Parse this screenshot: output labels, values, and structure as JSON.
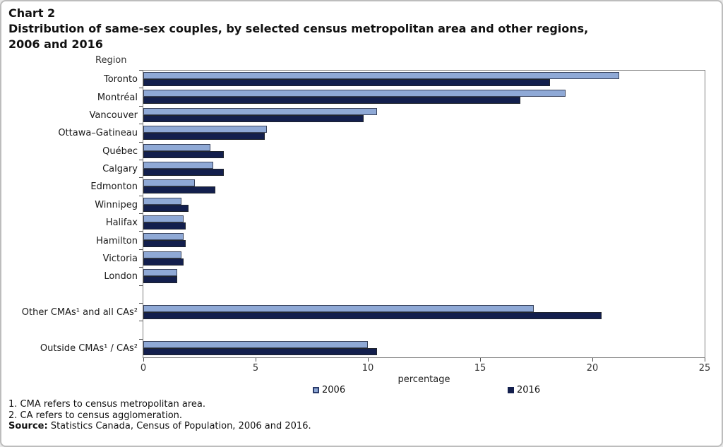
{
  "header": {
    "chart_label": "Chart 2",
    "title": "Distribution of same-sex couples, by selected census metropolitan area and other regions, 2006 and 2016"
  },
  "chart_data": {
    "type": "bar",
    "orientation": "horizontal",
    "title": "Distribution of same-sex couples, by selected census metropolitan area and other regions, 2006 and 2016",
    "ylabel": "Region",
    "xlabel": "percentage",
    "xlim": [
      0,
      25
    ],
    "xticks": [
      0,
      5,
      10,
      15,
      20,
      25
    ],
    "grid": "off",
    "legend_position": "bottom",
    "categories": [
      "Toronto",
      "Montréal",
      "Vancouver",
      "Ottawa–Gatineau",
      "Québec",
      "Calgary",
      "Edmonton",
      "Winnipeg",
      "Halifax",
      "Hamilton",
      "Victoria",
      "London",
      "Other CMAs¹ and all CAs²",
      "Outside CMAs¹ / CAs²"
    ],
    "blank_row_before_indices": [
      12,
      13
    ],
    "series": [
      {
        "name": "2006",
        "color": "#8FA9D6",
        "values": [
          21.2,
          18.8,
          10.4,
          5.5,
          3.0,
          3.1,
          2.3,
          1.7,
          1.8,
          1.8,
          1.7,
          1.5,
          17.4,
          10.0
        ]
      },
      {
        "name": "2016",
        "color": "#131F4D",
        "values": [
          18.1,
          16.8,
          9.8,
          5.4,
          3.6,
          3.6,
          3.2,
          2.0,
          1.9,
          1.9,
          1.8,
          1.5,
          20.4,
          10.4
        ]
      }
    ]
  },
  "legend": {
    "items": [
      {
        "label": "2006",
        "color": "#8FA9D6",
        "border": "#2A3B6B"
      },
      {
        "label": "2016",
        "color": "#131F4D",
        "border": "#131F4D"
      }
    ]
  },
  "footnotes": {
    "line1": "1. CMA refers to census metropolitan area.",
    "line2": "2. CA refers to census agglomeration.",
    "source_label": "Source:",
    "source_text": " Statistics Canada, Census of Population, 2006 and 2016."
  }
}
